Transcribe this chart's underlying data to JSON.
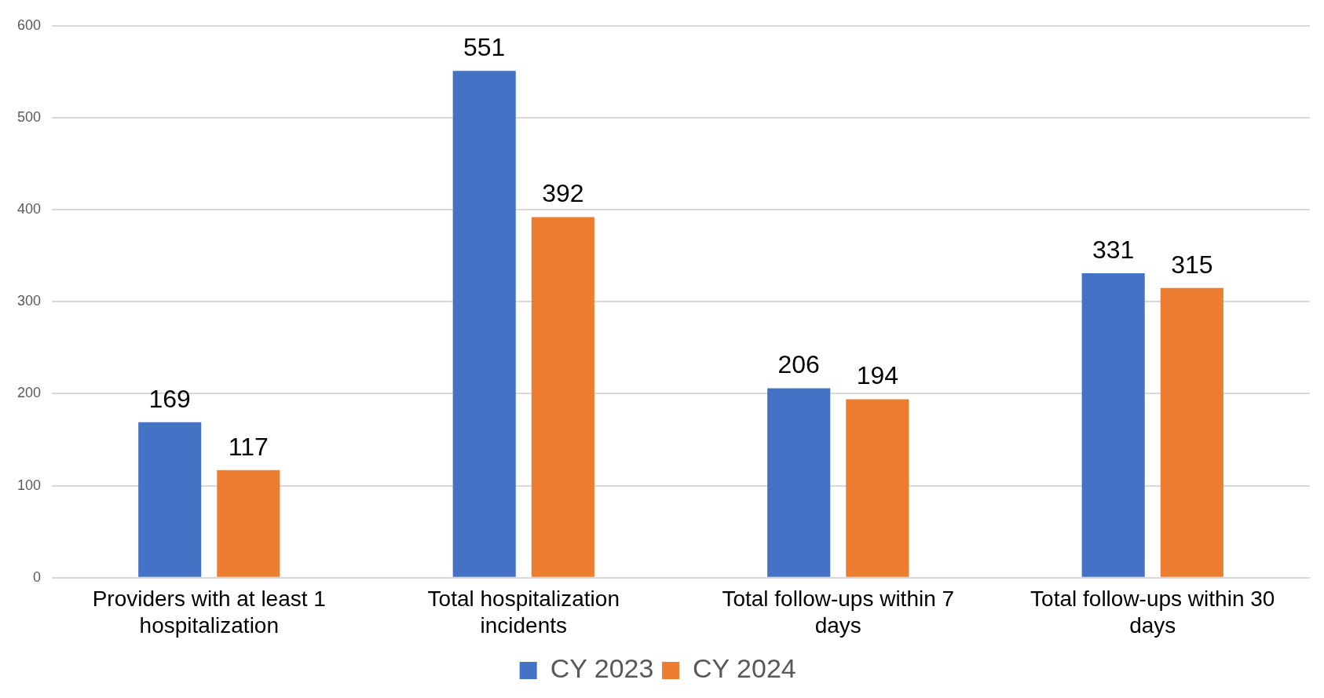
{
  "chart_data": {
    "type": "bar",
    "categories": [
      "Providers with at least 1 hospitalization",
      "Total hospitalization incidents",
      "Total follow-ups within 7 days",
      "Total follow-ups within 30 days"
    ],
    "series": [
      {
        "name": "CY 2023",
        "color": "#4472c4",
        "values": [
          169,
          551,
          206,
          331
        ]
      },
      {
        "name": "CY 2024",
        "color": "#ed7d31",
        "values": [
          117,
          392,
          194,
          315
        ]
      }
    ],
    "ylim": [
      0,
      600
    ],
    "yticks": [
      0,
      100,
      200,
      300,
      400,
      500,
      600
    ],
    "grid": "y",
    "legend": "bottom",
    "data_labels": true
  }
}
